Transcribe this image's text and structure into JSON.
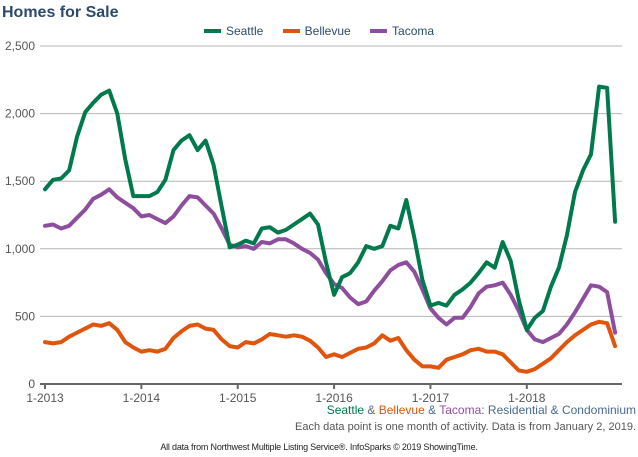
{
  "chart_data": {
    "type": "line",
    "title": "Homes for Sale",
    "xlabel": "",
    "ylabel": "",
    "ylim": [
      0,
      2500
    ],
    "yticks": [
      0,
      500,
      1000,
      1500,
      2000,
      2500
    ],
    "ytick_labels": [
      "0",
      "500",
      "1,000",
      "1,500",
      "2,000",
      "2,500"
    ],
    "xtick_labels": [
      "1-2013",
      "1-2014",
      "1-2015",
      "1-2016",
      "1-2017",
      "1-2018"
    ],
    "x_start": "1-2013",
    "x_end": "12-2018",
    "x_unit": "month",
    "grid": true,
    "legend_position": "top-center",
    "series": [
      {
        "name": "Seattle",
        "color": "#007a4d",
        "values": [
          1440,
          1510,
          1520,
          1580,
          1830,
          2010,
          2080,
          2140,
          2170,
          2000,
          1660,
          1390,
          1390,
          1390,
          1420,
          1510,
          1730,
          1800,
          1840,
          1730,
          1800,
          1620,
          1310,
          1010,
          1030,
          1060,
          1040,
          1150,
          1160,
          1120,
          1140,
          1180,
          1220,
          1260,
          1180,
          900,
          660,
          790,
          820,
          900,
          1020,
          1000,
          1020,
          1170,
          1150,
          1360,
          1080,
          770,
          580,
          600,
          580,
          660,
          700,
          750,
          820,
          900,
          860,
          1050,
          910,
          620,
          400,
          490,
          540,
          720,
          860,
          1100,
          1420,
          1580,
          1700,
          2200,
          2190,
          1200
        ]
      },
      {
        "name": "Bellevue",
        "color": "#e0540c",
        "values": [
          310,
          300,
          310,
          350,
          380,
          410,
          440,
          430,
          450,
          400,
          310,
          270,
          240,
          250,
          240,
          260,
          340,
          390,
          430,
          440,
          410,
          400,
          330,
          280,
          270,
          310,
          300,
          330,
          370,
          360,
          350,
          360,
          350,
          320,
          270,
          200,
          220,
          200,
          230,
          260,
          270,
          300,
          360,
          320,
          340,
          250,
          180,
          130,
          130,
          120,
          180,
          200,
          220,
          250,
          260,
          240,
          240,
          220,
          160,
          100,
          90,
          110,
          150,
          190,
          250,
          310,
          360,
          400,
          440,
          460,
          450,
          280
        ]
      },
      {
        "name": "Tacoma",
        "color": "#8e4e9e",
        "values": [
          1170,
          1180,
          1150,
          1170,
          1230,
          1290,
          1370,
          1400,
          1440,
          1380,
          1340,
          1300,
          1240,
          1250,
          1220,
          1190,
          1240,
          1320,
          1390,
          1380,
          1320,
          1260,
          1150,
          1030,
          1010,
          1020,
          1000,
          1050,
          1040,
          1070,
          1070,
          1040,
          1000,
          970,
          920,
          820,
          740,
          710,
          640,
          590,
          610,
          690,
          760,
          840,
          880,
          900,
          830,
          700,
          560,
          490,
          440,
          490,
          490,
          570,
          670,
          720,
          730,
          750,
          660,
          540,
          400,
          330,
          310,
          340,
          370,
          440,
          530,
          630,
          730,
          720,
          680,
          380
        ]
      }
    ]
  },
  "legend": {
    "items": [
      {
        "label": "Seattle",
        "color": "#007a4d"
      },
      {
        "label": "Bellevue",
        "color": "#e0540c"
      },
      {
        "label": "Tacoma",
        "color": "#8e4e9e"
      }
    ]
  },
  "subtitle": {
    "seattle": "Seattle",
    "amp1": " & ",
    "bellevue": "Bellevue",
    "amp2": " & ",
    "tacoma": "Tacoma",
    "rest": ": Residential & Condominium"
  },
  "note": "Each data point is one month of activity. Data is from January 2, 2019.",
  "footer": "All data from Northwest Multiple Listing Service®. InfoSparks © 2019 ShowingTime."
}
